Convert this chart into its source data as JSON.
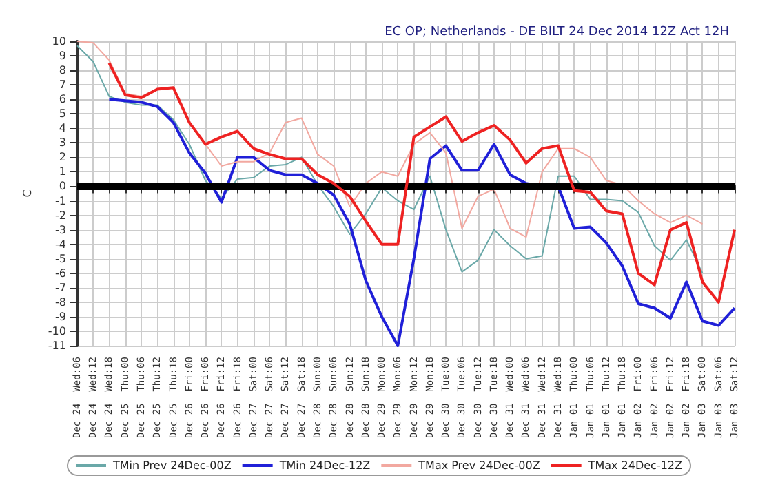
{
  "chart_data": {
    "type": "line",
    "title": "EC OP; Netherlands - DE BILT 24 Dec 2014 12Z Act 12H",
    "ylabel": "C",
    "categories": [
      "Dec 24  Wed:06",
      "Dec 24  Wed:12",
      "Dec 24  Wed:18",
      "Dec 25  Thu:00",
      "Dec 25  Thu:06",
      "Dec 25  Thu:12",
      "Dec 25  Thu:18",
      "Dec 26  Fri:00",
      "Dec 26  Fri:06",
      "Dec 26  Fri:12",
      "Dec 26  Fri:18",
      "Dec 27  Sat:00",
      "Dec 27  Sat:06",
      "Dec 27  Sat:12",
      "Dec 27  Sat:18",
      "Dec 28  Sun:00",
      "Dec 28  Sun:06",
      "Dec 28  Sun:12",
      "Dec 28  Sun:18",
      "Dec 29  Mon:00",
      "Dec 29  Mon:06",
      "Dec 29  Mon:12",
      "Dec 29  Mon:18",
      "Dec 30  Tue:00",
      "Dec 30  Tue:06",
      "Dec 30  Tue:12",
      "Dec 30  Tue:18",
      "Dec 31  Wed:00",
      "Dec 31  Wed:06",
      "Dec 31  Wed:12",
      "Dec 31  Wed:18",
      "Jan 01  Thu:00",
      "Jan 01  Thu:06",
      "Jan 01  Thu:12",
      "Jan 01  Thu:18",
      "Jan 02  Fri:00",
      "Jan 02  Fri:06",
      "Jan 02  Fri:12",
      "Jan 02  Fri:18",
      "Jan 03  Sat:00",
      "Jan 03  Sat:06",
      "Jan 03  Sat:12"
    ],
    "series": [
      {
        "name": "TMin Prev 24Dec-00Z",
        "color": "#6aa8a8",
        "values": [
          9.7,
          8.6,
          6.2,
          5.8,
          5.6,
          5.6,
          4.6,
          2.9,
          0.4,
          -0.8,
          0.5,
          0.6,
          1.4,
          1.5,
          2.0,
          0.1,
          -1.4,
          -3.3,
          -1.9,
          -0.1,
          -1.0,
          -1.6,
          0.7,
          -3.0,
          -5.9,
          -5.1,
          -3.0,
          -4.1,
          -5.0,
          -4.8,
          0.7,
          0.7,
          -0.9,
          -0.9,
          -1.0,
          -1.8,
          -4.1,
          -5.1,
          -3.7,
          -6.0,
          null,
          null
        ]
      },
      {
        "name": "TMin 24Dec-12Z",
        "color": "#2020d8",
        "values": [
          null,
          null,
          6.0,
          5.9,
          5.8,
          5.5,
          4.4,
          2.3,
          0.9,
          -1.1,
          2.0,
          2.0,
          1.1,
          0.8,
          0.8,
          0.2,
          -0.6,
          -2.6,
          -6.5,
          -9.0,
          -11.0,
          -5.0,
          1.9,
          2.8,
          1.1,
          1.1,
          2.9,
          0.8,
          0.2,
          0.0,
          0.0,
          -2.9,
          -2.8,
          -3.9,
          -5.5,
          -8.1,
          -8.4,
          -9.1,
          -6.6,
          -9.3,
          -9.6,
          -8.4
        ]
      },
      {
        "name": "TMax Prev 24Dec-00Z",
        "color": "#f2a8a0",
        "values": [
          10.0,
          9.9,
          8.7,
          6.4,
          6.2,
          6.7,
          6.8,
          4.3,
          2.9,
          1.4,
          1.7,
          1.7,
          2.3,
          4.4,
          4.7,
          2.2,
          1.4,
          -1.4,
          0.2,
          1.0,
          0.7,
          2.9,
          3.7,
          2.3,
          -2.9,
          -0.7,
          -0.2,
          -2.9,
          -3.5,
          1.0,
          2.6,
          2.6,
          2.0,
          0.4,
          0.1,
          -1.0,
          -1.9,
          -2.5,
          -2.0,
          -2.6,
          null,
          null
        ]
      },
      {
        "name": "TMax 24Dec-12Z",
        "color": "#ee2222",
        "values": [
          null,
          null,
          8.5,
          6.3,
          6.1,
          6.7,
          6.8,
          4.4,
          2.9,
          3.4,
          3.8,
          2.6,
          2.2,
          1.9,
          1.9,
          0.8,
          0.2,
          -0.7,
          -2.4,
          -4.0,
          -4.0,
          3.4,
          4.1,
          4.8,
          3.1,
          3.7,
          4.2,
          3.2,
          1.6,
          2.6,
          2.8,
          -0.3,
          -0.4,
          -1.7,
          -1.9,
          -6.0,
          -6.8,
          -3.0,
          -2.5,
          -6.6,
          -8.0,
          -3.0
        ]
      }
    ],
    "ylim": [
      -11,
      10
    ],
    "yticks": [
      -11,
      -10,
      -9,
      -8,
      -7,
      -6,
      -5,
      -4,
      -3,
      -2,
      -1,
      0,
      1,
      2,
      3,
      4,
      5,
      6,
      7,
      8,
      9,
      10
    ],
    "ref_lines": [
      {
        "axis": "y",
        "value": 0,
        "color": "#000000"
      }
    ],
    "grid": true,
    "legend": "bottom",
    "marker": "none",
    "line_style": "solid"
  }
}
